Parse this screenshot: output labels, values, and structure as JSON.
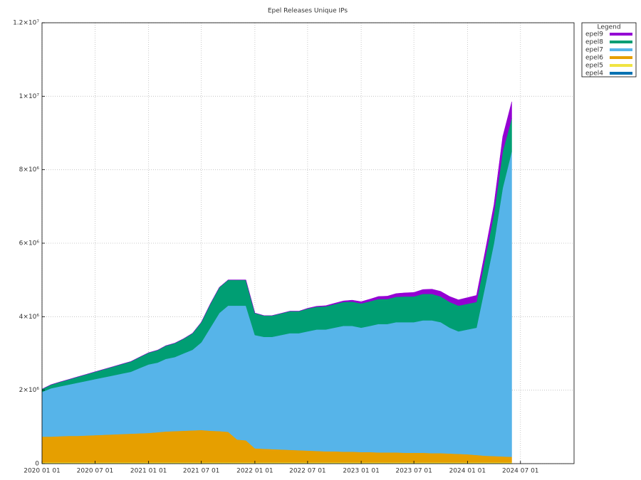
{
  "chart_data": {
    "type": "stacked-area",
    "title": "Epel Releases Unique IPs",
    "legend_title": "Legend",
    "legend": "outside-top-right",
    "grid": true,
    "x": [
      "2020-01-01",
      "2020-02-01",
      "2020-03-01",
      "2020-04-01",
      "2020-05-01",
      "2020-06-01",
      "2020-07-01",
      "2020-08-01",
      "2020-09-01",
      "2020-10-01",
      "2020-11-01",
      "2020-12-01",
      "2021-01-01",
      "2021-02-01",
      "2021-03-01",
      "2021-04-01",
      "2021-05-01",
      "2021-06-01",
      "2021-07-01",
      "2021-08-01",
      "2021-09-01",
      "2021-10-01",
      "2021-11-01",
      "2021-12-01",
      "2022-01-01",
      "2022-02-01",
      "2022-03-01",
      "2022-04-01",
      "2022-05-01",
      "2022-06-01",
      "2022-07-01",
      "2022-08-01",
      "2022-09-01",
      "2022-10-01",
      "2022-11-01",
      "2022-12-01",
      "2023-01-01",
      "2023-02-01",
      "2023-03-01",
      "2023-04-01",
      "2023-05-01",
      "2023-06-01",
      "2023-07-01",
      "2023-08-01",
      "2023-09-01",
      "2023-10-01",
      "2023-11-01",
      "2023-12-01",
      "2024-01-01",
      "2024-02-01",
      "2024-03-01",
      "2024-04-01",
      "2024-05-01",
      "2024-06-01"
    ],
    "series": [
      {
        "name": "epel4",
        "color": "#0072b2",
        "values": [
          5000,
          5000,
          5000,
          5000,
          5000,
          5000,
          5000,
          5000,
          5000,
          5000,
          5000,
          5000,
          5000,
          5000,
          5000,
          5000,
          5000,
          5000,
          5000,
          5000,
          5000,
          5000,
          5000,
          5000,
          5000,
          5000,
          5000,
          5000,
          5000,
          5000,
          5000,
          5000,
          5000,
          5000,
          5000,
          5000,
          5000,
          5000,
          5000,
          5000,
          5000,
          5000,
          5000,
          5000,
          5000,
          5000,
          5000,
          5000,
          5000,
          5000,
          5000,
          5000,
          5000,
          5000
        ]
      },
      {
        "name": "epel5",
        "color": "#f0e442",
        "values": [
          30000,
          30000,
          30000,
          30000,
          30000,
          30000,
          30000,
          30000,
          30000,
          30000,
          30000,
          30000,
          30000,
          30000,
          30000,
          30000,
          30000,
          30000,
          30000,
          30000,
          30000,
          30000,
          30000,
          30000,
          30000,
          30000,
          30000,
          30000,
          30000,
          30000,
          30000,
          30000,
          30000,
          30000,
          30000,
          30000,
          30000,
          30000,
          30000,
          30000,
          30000,
          30000,
          30000,
          30000,
          30000,
          30000,
          30000,
          30000,
          30000,
          30000,
          30000,
          30000,
          30000,
          30000
        ]
      },
      {
        "name": "epel6",
        "color": "#e69f00",
        "values": [
          700000,
          700000,
          710000,
          720000,
          720000,
          730000,
          740000,
          750000,
          760000,
          770000,
          780000,
          790000,
          800000,
          820000,
          840000,
          850000,
          860000,
          870000,
          880000,
          860000,
          850000,
          830000,
          620000,
          600000,
          380000,
          370000,
          360000,
          350000,
          340000,
          330000,
          320000,
          310000,
          300000,
          300000,
          290000,
          290000,
          280000,
          280000,
          270000,
          270000,
          270000,
          260000,
          260000,
          260000,
          250000,
          250000,
          240000,
          230000,
          220000,
          200000,
          180000,
          170000,
          160000,
          150000
        ]
      },
      {
        "name": "epel7",
        "color": "#56b4e9",
        "values": [
          1215000,
          1315000,
          1355000,
          1395000,
          1445000,
          1485000,
          1525000,
          1565000,
          1605000,
          1645000,
          1685000,
          1775000,
          1865000,
          1895000,
          1975000,
          2015000,
          2105000,
          2195000,
          2385000,
          2805000,
          3215000,
          3435000,
          3645000,
          3665000,
          3085000,
          3045000,
          3055000,
          3115000,
          3175000,
          3185000,
          3245000,
          3305000,
          3315000,
          3365000,
          3425000,
          3425000,
          3385000,
          3435000,
          3495000,
          3495000,
          3545000,
          3555000,
          3555000,
          3605000,
          3615000,
          3565000,
          3425000,
          3335000,
          3395000,
          3465000,
          4585000,
          5795000,
          7305000,
          8315000
        ]
      },
      {
        "name": "epel8",
        "color": "#009e73",
        "values": [
          80000,
          100000,
          120000,
          140000,
          160000,
          180000,
          200000,
          220000,
          240000,
          260000,
          280000,
          300000,
          320000,
          340000,
          360000,
          380000,
          400000,
          450000,
          550000,
          650000,
          700000,
          700000,
          700000,
          700000,
          600000,
          580000,
          580000,
          590000,
          600000,
          600000,
          620000,
          620000,
          630000,
          640000,
          650000,
          660000,
          660000,
          670000,
          680000,
          680000,
          690000,
          700000,
          700000,
          720000,
          720000,
          700000,
          700000,
          700000,
          700000,
          700000,
          750000,
          800000,
          1000000,
          900000
        ]
      },
      {
        "name": "epel9",
        "color": "#9400d3",
        "values": [
          0,
          0,
          0,
          0,
          0,
          0,
          0,
          0,
          0,
          0,
          0,
          0,
          0,
          0,
          0,
          0,
          0,
          0,
          0,
          0,
          0,
          0,
          0,
          0,
          0,
          0,
          0,
          0,
          0,
          0,
          10000,
          15000,
          20000,
          25000,
          30000,
          40000,
          50000,
          60000,
          70000,
          80000,
          90000,
          100000,
          110000,
          120000,
          130000,
          140000,
          150000,
          160000,
          170000,
          180000,
          200000,
          250000,
          400000,
          450000
        ]
      }
    ],
    "xlim": [
      "2020-01-01",
      "2025-01-01"
    ],
    "xticks": [
      {
        "value": "2020-01-01",
        "label": "2020 01 01"
      },
      {
        "value": "2020-07-01",
        "label": "2020 07 01"
      },
      {
        "value": "2021-01-01",
        "label": "2021 01 01"
      },
      {
        "value": "2021-07-01",
        "label": "2021 07 01"
      },
      {
        "value": "2022-01-01",
        "label": "2022 01 01"
      },
      {
        "value": "2022-07-01",
        "label": "2022 07 01"
      },
      {
        "value": "2023-01-01",
        "label": "2023 01 01"
      },
      {
        "value": "2023-07-01",
        "label": "2023 07 01"
      },
      {
        "value": "2024-01-01",
        "label": "2024 01 01"
      },
      {
        "value": "2024-07-01",
        "label": "2024 07 01"
      }
    ],
    "ylim": [
      0,
      12000000
    ],
    "yticks": [
      0,
      {
        "value": 2000000,
        "label": "2×10⁶"
      },
      {
        "value": 4000000,
        "label": "4×10⁶"
      },
      {
        "value": 6000000,
        "label": "6×10⁶"
      },
      {
        "value": 8000000,
        "label": "8×10⁶"
      },
      {
        "value": 10000000,
        "label": "1×10⁷"
      },
      {
        "value": 12000000,
        "label": "1.2×10⁷"
      }
    ]
  }
}
